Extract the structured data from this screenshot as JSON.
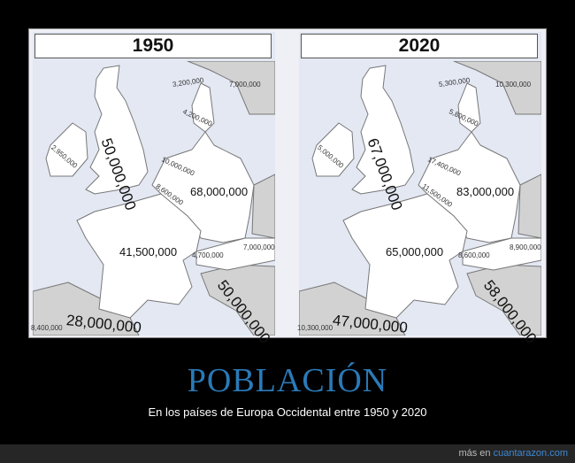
{
  "panels": [
    {
      "year": "1950",
      "labels": {
        "norway": "3,200,000",
        "sweden": "7,000,000",
        "denmark": "4,200,000",
        "ireland": "2,950,000",
        "uk": "50,000,000",
        "netherlands": "10,000,000",
        "belgium": "8,600,000",
        "germany": "68,000,000",
        "france": "41,500,000",
        "switzerland": "4,700,000",
        "austria": "7,000,000",
        "italy": "50,000,000",
        "spain": "28,000,000",
        "portugal": "8,400,000"
      }
    },
    {
      "year": "2020",
      "labels": {
        "norway": "5,300,000",
        "sweden": "10,300,000",
        "denmark": "5,800,000",
        "ireland": "5,000,000",
        "uk": "67,000,000",
        "netherlands": "17,400,000",
        "belgium": "11,500,000",
        "germany": "83,000,000",
        "france": "65,000,000",
        "switzerland": "8,600,000",
        "austria": "8,900,000",
        "italy": "58,000,000",
        "spain": "47,000,000",
        "portugal": "10,300,000"
      }
    }
  ],
  "colors": {
    "sea": "#e3e8f3",
    "land": "#ffffff",
    "other_land": "#d2d2d2",
    "title": "#2a7ab8"
  },
  "title": "POBLACIÓN",
  "subtitle": "En los países de Europa Occidental entre 1950 y 2020",
  "footer": {
    "prefix": "más en",
    "link": "cuantarazon.com"
  }
}
